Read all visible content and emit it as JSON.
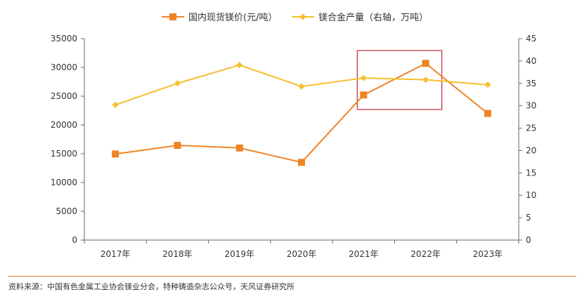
{
  "chart_data": {
    "type": "line",
    "categories": [
      "2017年",
      "2018年",
      "2019年",
      "2020年",
      "2021年",
      "2022年",
      "2023年"
    ],
    "series": [
      {
        "name": "国内现货镁价(元/吨）",
        "axis": "left",
        "color": "#F08326",
        "marker": "square",
        "values": [
          14950,
          16450,
          16000,
          13500,
          25200,
          30700,
          22000
        ]
      },
      {
        "name": "镁合金产量（右轴，万吨）",
        "axis": "right",
        "color": "#F8BE2E",
        "marker": "diamond",
        "values": [
          30.2,
          35.0,
          39.1,
          34.3,
          36.2,
          35.8,
          34.7
        ]
      }
    ],
    "left_axis": {
      "min": 0,
      "max": 35000,
      "step": 5000,
      "tick_labels": [
        "0",
        "5000",
        "10000",
        "15000",
        "20000",
        "25000",
        "30000",
        "35000"
      ]
    },
    "right_axis": {
      "min": 0,
      "max": 45,
      "step": 5,
      "tick_labels": [
        "0",
        "5",
        "10",
        "15",
        "20",
        "25",
        "30",
        "35",
        "40",
        "45"
      ]
    },
    "grid": false,
    "legend_position": "top-center",
    "highlight": {
      "from_category": "2021年",
      "to_category": "2022年",
      "color": "#C0282D"
    }
  },
  "source": "资料来源：中国有色金属工业协会镁业分会，特种铸造杂志公众号，天风证券研究所",
  "colors": {
    "rule": "#F08020",
    "axis": "#666666"
  }
}
